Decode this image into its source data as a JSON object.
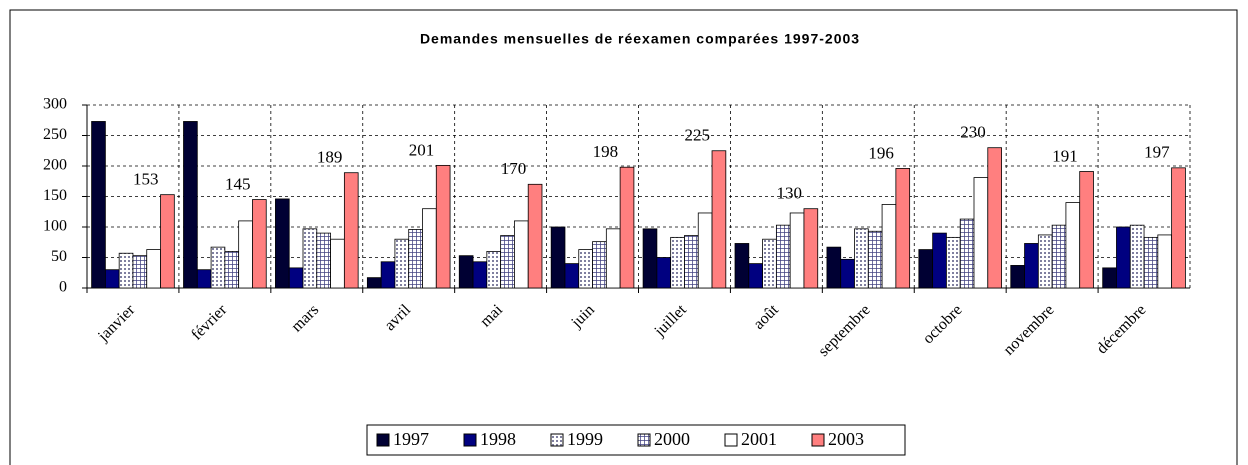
{
  "chart_data": {
    "type": "bar",
    "title": "Demandes mensuelles de réexamen comparées 1997-2003",
    "categories": [
      "janvier",
      "février",
      "mars",
      "avril",
      "mai",
      "juin",
      "juillet",
      "août",
      "septembre",
      "octobre",
      "novembre",
      "décembre"
    ],
    "series": [
      {
        "name": "1997",
        "color": "#000033",
        "pattern": "solid",
        "values": [
          273,
          273,
          146,
          17,
          53,
          100,
          97,
          73,
          67,
          63,
          37,
          33
        ]
      },
      {
        "name": "1998",
        "color": "#000080",
        "pattern": "solid",
        "values": [
          30,
          30,
          33,
          43,
          43,
          40,
          50,
          40,
          47,
          90,
          73,
          100
        ]
      },
      {
        "name": "1999",
        "color": "#8080a0",
        "pattern": "dots",
        "values": [
          57,
          67,
          97,
          80,
          60,
          63,
          83,
          80,
          97,
          83,
          87,
          103
        ]
      },
      {
        "name": "2000",
        "color": "#404080",
        "pattern": "grid",
        "values": [
          53,
          60,
          90,
          96,
          86,
          76,
          86,
          103,
          93,
          113,
          103,
          83
        ]
      },
      {
        "name": "2001",
        "color": "#ffffff",
        "pattern": "solid",
        "values": [
          63,
          110,
          80,
          130,
          110,
          97,
          123,
          123,
          137,
          181,
          140,
          87
        ]
      },
      {
        "name": "2003",
        "color": "#ff7f7f",
        "pattern": "solid",
        "labels": true,
        "values": [
          153,
          145,
          189,
          201,
          170,
          198,
          225,
          130,
          196,
          230,
          191,
          197
        ]
      }
    ],
    "ylim": [
      0,
      300
    ],
    "yticks": [
      0,
      50,
      100,
      150,
      200,
      250,
      300
    ],
    "grid": true,
    "legend": "bottom"
  }
}
